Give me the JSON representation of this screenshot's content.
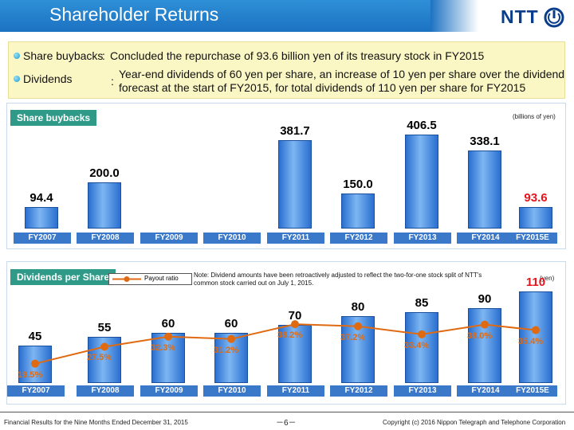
{
  "header": {
    "title": "Shareholder Returns",
    "logo_text": "NTT"
  },
  "summary": {
    "buybacks_label": "Share buybacks",
    "buybacks_sep": ":",
    "buybacks_text": "Concluded the repurchase of 93.6 billion yen of its treasury stock in FY2015",
    "dividends_label": "Dividends",
    "dividends_sep": ":",
    "dividends_text": "Year-end dividends of 60 yen per share, an increase of 10 yen per share over the dividend forecast at the start of FY2015, for total dividends of 110 yen per share for FY2015"
  },
  "panel1": {
    "tab": "Share buybacks",
    "unit": "(billions of yen)"
  },
  "panel2": {
    "tab": "Dividends per Share",
    "legend": "Payout ratio",
    "note": "Note: Dividend amounts have been retroactively adjusted to reflect the two-for-one stock split of NTT's common stock carried out on July 1, 2015.",
    "unit": "(yen)"
  },
  "chart_data": [
    {
      "type": "bar",
      "title": "Share buybacks",
      "ylabel": "(billions of yen)",
      "categories": [
        "FY2007",
        "FY2008",
        "FY2009",
        "FY2010",
        "FY2011",
        "FY2012",
        "FY2013",
        "FY2014",
        "FY2015E"
      ],
      "values": [
        94.4,
        200.0,
        null,
        null,
        381.7,
        150.0,
        406.5,
        338.1,
        93.6
      ],
      "labels": [
        "94.4",
        "200.0",
        "",
        "",
        "381.7",
        "150.0",
        "406.5",
        "338.1",
        "93.6"
      ],
      "highlight_index": 8,
      "highlight_color": "#e8141c",
      "ylim": [
        0,
        420
      ]
    },
    {
      "type": "bar",
      "title": "Dividends per Share",
      "ylabel": "(yen)",
      "categories": [
        "FY2007",
        "FY2008",
        "FY2009",
        "FY2010",
        "FY2011",
        "FY2012",
        "FY2013",
        "FY2014",
        "FY2015E"
      ],
      "values": [
        45,
        55,
        60,
        60,
        70,
        80,
        85,
        90,
        110
      ],
      "highlight_index": 8,
      "highlight_color": "#e8141c",
      "ylim": [
        0,
        120
      ],
      "line_series": {
        "name": "Payout ratio",
        "color": "#e06a12",
        "values": [
          19.5,
          27.5,
          32.3,
          31.2,
          38.2,
          37.2,
          33.4,
          38.0,
          35.4
        ],
        "labels": [
          "19.5%",
          "27.5%",
          "32.3%",
          "31.2%",
          "38.2%",
          "37.2%",
          "33.4%",
          "38.0%",
          "35.4%"
        ]
      }
    }
  ],
  "footer": {
    "left": "Financial Results for the Nine Months Ended December 31, 2015",
    "page": "－6－",
    "right": "Copyright (c) 2016 Nippon Telegraph and Telephone Corporation"
  }
}
